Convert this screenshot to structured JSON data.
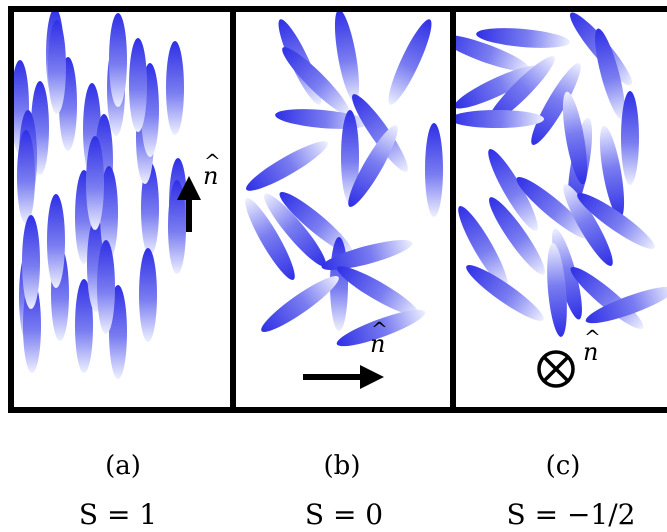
{
  "panels": [
    {
      "id": "a",
      "caption": "(a)",
      "order_parameter": "S = 1",
      "director_symbol": "n",
      "director_direction": "vertical",
      "molecules": [
        [
          40,
          128,
          90
        ],
        [
          20,
          107,
          90
        ],
        [
          28,
          157,
          90
        ],
        [
          68,
          104,
          90
        ],
        [
          55,
          55,
          90
        ],
        [
          57,
          67,
          90
        ],
        [
          26,
          177,
          90
        ],
        [
          28,
          297,
          90
        ],
        [
          32,
          326,
          90
        ],
        [
          31,
          262,
          90
        ],
        [
          60,
          294,
          90
        ],
        [
          84,
          217,
          90
        ],
        [
          84,
          326,
          90
        ],
        [
          56,
          241,
          90
        ],
        [
          96,
          265,
          90
        ],
        [
          92,
          130,
          90
        ],
        [
          104,
          161,
          90
        ],
        [
          109,
          213,
          90
        ],
        [
          95,
          183,
          90
        ],
        [
          118,
          332,
          90
        ],
        [
          106,
          287,
          90
        ],
        [
          116,
          89,
          90
        ],
        [
          118,
          60,
          90
        ],
        [
          150,
          209,
          90
        ],
        [
          148,
          295,
          90
        ],
        [
          145,
          137,
          90
        ],
        [
          175,
          88,
          90
        ],
        [
          150,
          110,
          90
        ],
        [
          138,
          85,
          90
        ],
        [
          178,
          205,
          90
        ],
        [
          177,
          227,
          90
        ]
      ]
    },
    {
      "id": "b",
      "caption": "(b)",
      "order_parameter": "S = 0",
      "director_symbol": "n",
      "director_direction": "horizontal",
      "molecules": [
        [
          300,
          62,
          65
        ],
        [
          316,
          81,
          45
        ],
        [
          347,
          56,
          80
        ],
        [
          322,
          119,
          5
        ],
        [
          287,
          166,
          -30
        ],
        [
          350,
          157,
          90
        ],
        [
          380,
          133,
          55
        ],
        [
          410,
          62,
          115
        ],
        [
          434,
          170,
          90
        ],
        [
          373,
          166,
          -60
        ],
        [
          295,
          230,
          -130
        ],
        [
          270,
          239,
          -120
        ],
        [
          316,
          223,
          40
        ],
        [
          339,
          284,
          90
        ],
        [
          367,
          255,
          -15
        ],
        [
          378,
          291,
          30
        ],
        [
          300,
          304,
          -35
        ],
        [
          381,
          328,
          -20
        ]
      ]
    },
    {
      "id": "c",
      "caption": "(c)",
      "order_parameter": "S = −1/2",
      "director_symbol": "n",
      "director_direction": "out-of-plane",
      "molecules": [
        [
          485,
          53,
          20
        ],
        [
          523,
          38,
          5
        ],
        [
          497,
          87,
          -25
        ],
        [
          521,
          90,
          -45
        ],
        [
          556,
          104,
          -60
        ],
        [
          497,
          119,
          0
        ],
        [
          601,
          49,
          50
        ],
        [
          610,
          74,
          75
        ],
        [
          580,
          164,
          -80
        ],
        [
          575,
          138,
          -100
        ],
        [
          630,
          138,
          90
        ],
        [
          612,
          172,
          -100
        ],
        [
          513,
          190,
          60
        ],
        [
          553,
          208,
          40
        ],
        [
          588,
          225,
          -120
        ],
        [
          483,
          247,
          60
        ],
        [
          517,
          236,
          55
        ],
        [
          567,
          274,
          -105
        ],
        [
          616,
          221,
          35
        ],
        [
          505,
          293,
          35
        ],
        [
          557,
          290,
          -95
        ],
        [
          607,
          298,
          40
        ],
        [
          630,
          305,
          -20
        ]
      ]
    }
  ],
  "colors": {
    "molecule_dark": "#2f2fe6",
    "molecule_light": "#eef0ff",
    "border": "#000000",
    "background": "#ffffff"
  },
  "arrow_icon_names": [
    "arrow-up-icon",
    "arrow-right-icon",
    "circled-times-icon"
  ]
}
